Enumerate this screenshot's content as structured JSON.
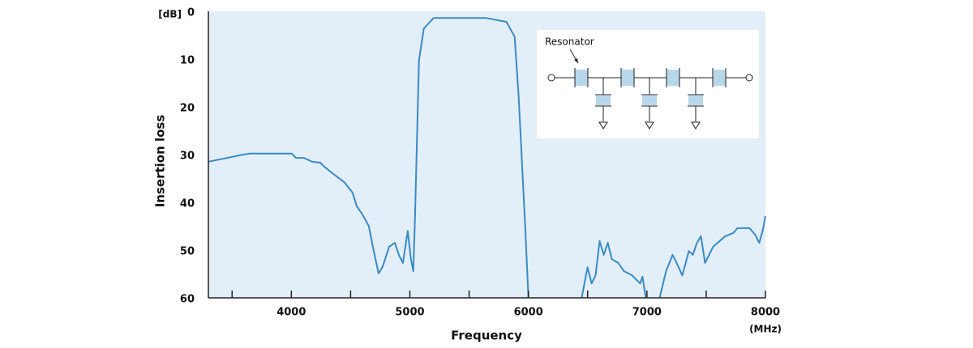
{
  "chart_data": {
    "type": "line",
    "x_label": "Frequency",
    "x_unit": "(MHz)",
    "y_label": "Insertion loss",
    "y_unit": "[dB]",
    "inset_label": "Resonator",
    "xlim": [
      3300,
      8000
    ],
    "xticks": [
      4000,
      5000,
      6000,
      7000,
      8000
    ],
    "minor_xticks": [
      3500,
      4500,
      5500,
      6500,
      7500
    ],
    "ylim": [
      60,
      0
    ],
    "yticks": [
      0,
      10,
      20,
      30,
      40,
      50,
      60
    ],
    "plot_background": "#e2eef8",
    "x": [
      3300,
      3594,
      3650,
      4004,
      4038,
      4107,
      4175,
      4243,
      4277,
      4346,
      4448,
      4517,
      4551,
      4599,
      4654,
      4688,
      4736,
      4770,
      4825,
      4873,
      4907,
      4941,
      4982,
      5009,
      5029,
      5043,
      5077,
      5118,
      5200,
      5371,
      5645,
      5815,
      5884,
      5918,
      5973,
      6000,
      6200,
      6450,
      6499,
      6533,
      6567,
      6601,
      6636,
      6670,
      6704,
      6758,
      6806,
      6875,
      6943,
      6963,
      6991,
      7050,
      7107,
      7162,
      7217,
      7251,
      7299,
      7354,
      7388,
      7422,
      7456,
      7490,
      7559,
      7661,
      7730,
      7764,
      7866,
      7914,
      7948,
      7976,
      8000
    ],
    "series": [
      {
        "name": "Insertion loss",
        "color": "#3a8bc3",
        "values": [
          31.5,
          30.0,
          29.8,
          29.8,
          30.7,
          30.7,
          31.5,
          31.7,
          32.5,
          33.9,
          35.8,
          38,
          40.8,
          42.5,
          45,
          49.3,
          54.9,
          53.5,
          49.3,
          48.5,
          51,
          52.7,
          46,
          51.9,
          54.4,
          43.4,
          10.3,
          3.6,
          1.4,
          1.4,
          1.4,
          2.2,
          5.3,
          18,
          45,
          60,
          null,
          60,
          53.6,
          57,
          55.3,
          48.1,
          51,
          48.5,
          51.9,
          52.7,
          54.4,
          55.3,
          57,
          55.6,
          60,
          null,
          60,
          54.4,
          51,
          52.7,
          55.3,
          50.2,
          51,
          48.5,
          47.1,
          52.7,
          49.3,
          47.1,
          46.4,
          45.4,
          45.4,
          46.8,
          48.5,
          46,
          42.9
        ]
      }
    ]
  }
}
